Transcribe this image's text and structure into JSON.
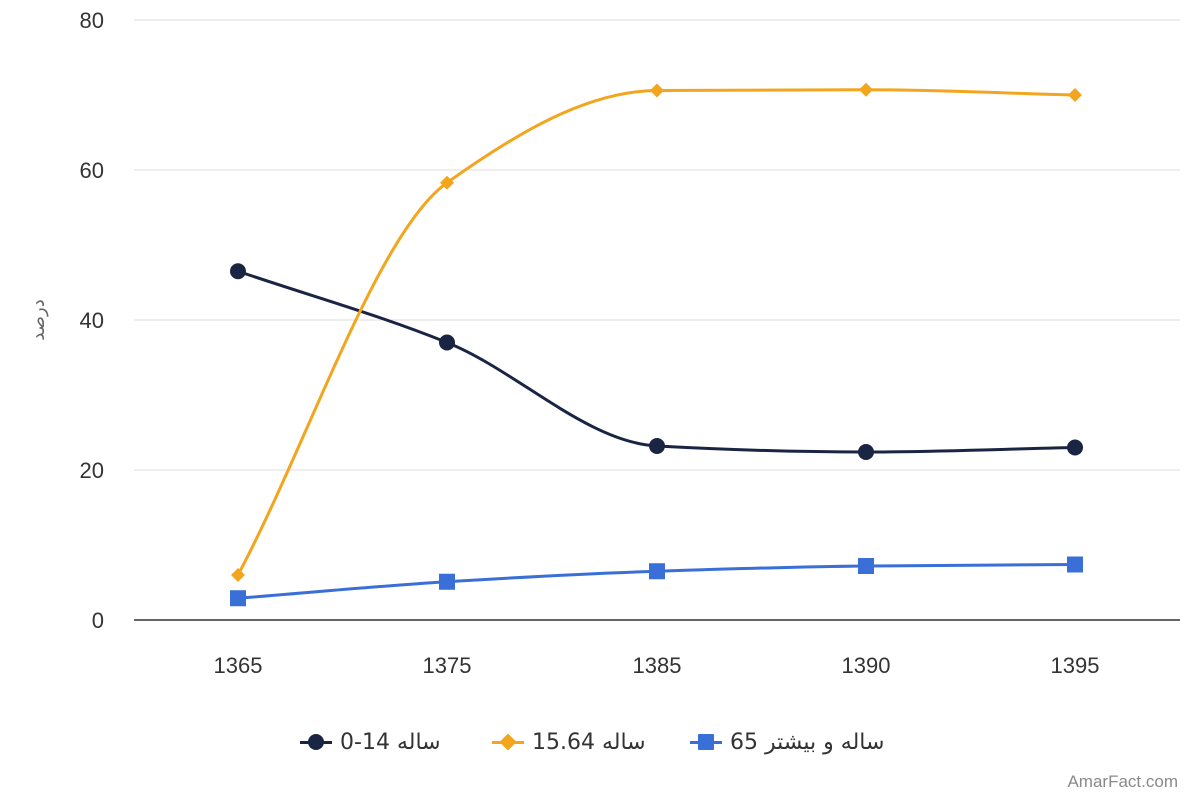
{
  "chart_data": {
    "type": "line",
    "categories": [
      "1365",
      "1375",
      "1385",
      "1390",
      "1395"
    ],
    "ylabel": "درصد",
    "ylim": [
      0,
      80
    ],
    "yticks": [
      "0",
      "20",
      "40",
      "60",
      "80"
    ],
    "grid": true,
    "legend_position": "bottom",
    "series": [
      {
        "name": "ساله 14-0",
        "color": "#1a2544",
        "marker": "circle",
        "values": [
          46.5,
          37,
          23.2,
          22.4,
          23
        ]
      },
      {
        "name": "ساله 15.64",
        "color": "#f2a51d",
        "marker": "diamond",
        "values": [
          6,
          58.3,
          70.6,
          70.7,
          70
        ]
      },
      {
        "name": "ساله و بیشتر 65",
        "color": "#3a6fd8",
        "marker": "square",
        "values": [
          2.9,
          5.1,
          6.5,
          7.2,
          7.4
        ]
      }
    ]
  },
  "watermark": "AmarFact.com"
}
